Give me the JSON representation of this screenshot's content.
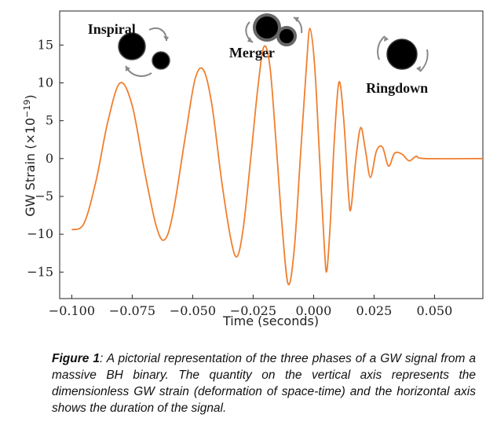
{
  "chart_data": {
    "type": "line",
    "xlabel": "Time (seconds)",
    "ylabel": "GW Strain (×10",
    "ylabel_exponent": "−19",
    "ylabel_close": ")",
    "xlim": [
      -0.105,
      0.07
    ],
    "ylim": [
      -18.5,
      19.5
    ],
    "x_ticks": [
      -0.1,
      -0.075,
      -0.05,
      -0.025,
      0.0,
      0.025,
      0.05
    ],
    "x_tick_labels": [
      "−0.100",
      "−0.075",
      "−0.050",
      "−0.025",
      "0.000",
      "0.025",
      "0.050"
    ],
    "y_ticks": [
      15,
      10,
      5,
      0,
      -5,
      -10,
      -15
    ],
    "y_tick_labels": [
      "15",
      "10",
      "5",
      "0",
      "−5",
      "−10",
      "−15"
    ],
    "grid": false,
    "series": [
      {
        "color": "#f07f2e",
        "points": [
          [
            -0.1,
            -9.4
          ],
          [
            -0.095,
            -8.6
          ],
          [
            -0.09,
            -3.0
          ],
          [
            -0.085,
            5.0
          ],
          [
            -0.08,
            10.0
          ],
          [
            -0.075,
            7.0
          ],
          [
            -0.07,
            -1.5
          ],
          [
            -0.065,
            -9.0
          ],
          [
            -0.0615,
            -10.7
          ],
          [
            -0.058,
            -7.0
          ],
          [
            -0.053,
            3.0
          ],
          [
            -0.049,
            10.5
          ],
          [
            -0.0455,
            11.7
          ],
          [
            -0.042,
            7.0
          ],
          [
            -0.038,
            -3.0
          ],
          [
            -0.034,
            -11.0
          ],
          [
            -0.0315,
            -12.9
          ],
          [
            -0.029,
            -9.0
          ],
          [
            -0.026,
            0.0
          ],
          [
            -0.023,
            9.5
          ],
          [
            -0.0205,
            14.8
          ],
          [
            -0.018,
            12.0
          ],
          [
            -0.0155,
            2.0
          ],
          [
            -0.013,
            -9.0
          ],
          [
            -0.0105,
            -16.6
          ],
          [
            -0.008,
            -12.0
          ],
          [
            -0.0055,
            0.0
          ],
          [
            -0.003,
            12.0
          ],
          [
            -0.0015,
            17.2
          ],
          [
            0.0005,
            12.0
          ],
          [
            0.0025,
            0.0
          ],
          [
            0.0045,
            -12.0
          ],
          [
            0.0055,
            -14.8
          ],
          [
            0.007,
            -8.0
          ],
          [
            0.0085,
            2.0
          ],
          [
            0.0105,
            10.1
          ],
          [
            0.0125,
            5.0
          ],
          [
            0.0145,
            -5.0
          ],
          [
            0.0155,
            -6.5
          ],
          [
            0.0175,
            0.0
          ],
          [
            0.0195,
            4.1
          ],
          [
            0.0215,
            1.0
          ],
          [
            0.0235,
            -2.5
          ],
          [
            0.026,
            1.0
          ],
          [
            0.0285,
            1.5
          ],
          [
            0.031,
            -1.0
          ],
          [
            0.0335,
            0.7
          ],
          [
            0.0365,
            0.6
          ],
          [
            0.0395,
            -0.3
          ],
          [
            0.0425,
            0.3
          ],
          [
            0.046,
            0.0
          ],
          [
            0.07,
            0.0
          ]
        ]
      }
    ],
    "annotations": [
      {
        "text": "Inspiral",
        "x": -0.0835,
        "y": 16.5
      },
      {
        "text": "Merger",
        "x": -0.0255,
        "y": 13.4
      },
      {
        "text": "Ringdown",
        "x": 0.0345,
        "y": 8.7
      }
    ]
  },
  "caption": {
    "label": "Figure 1",
    "text": ": A pictorial representation of the three phases of a GW signal from a massive BH binary. The quantity on the vertical axis represents the dimensionless GW strain (deformation of space-time) and the horizontal axis shows the duration of the signal."
  }
}
